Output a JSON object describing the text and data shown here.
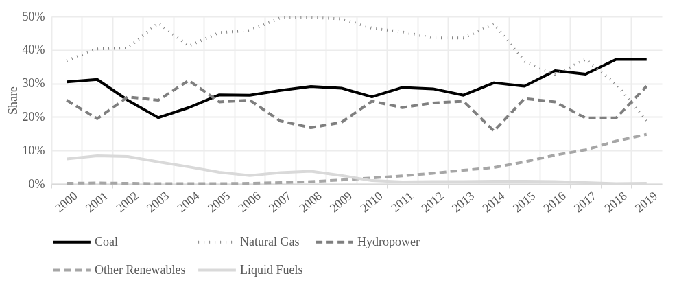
{
  "chart_data": {
    "type": "line",
    "ylabel": "Share",
    "categories": [
      "2000",
      "2001",
      "2002",
      "2003",
      "2004",
      "2005",
      "2006",
      "2007",
      "2008",
      "2009",
      "2010",
      "2011",
      "2012",
      "2013",
      "2014",
      "2015",
      "2016",
      "2017",
      "2018",
      "2019"
    ],
    "series": [
      {
        "name": "Coal",
        "color": "#000000",
        "line_style": "solid",
        "values": [
          30.5,
          31.2,
          25,
          19.8,
          22.8,
          26.6,
          26.5,
          27.9,
          29.1,
          28.6,
          26.0,
          28.8,
          28.4,
          26.5,
          30.2,
          29.2,
          33.8,
          32.8,
          37.2,
          37.2
        ]
      },
      {
        "name": "Natural Gas",
        "color": "#808080",
        "line_style": "dotted",
        "values": [
          36.8,
          40.3,
          40.6,
          48,
          41.2,
          45.2,
          45.8,
          49.6,
          49.7,
          49.3,
          46.5,
          45.4,
          43.6,
          43.6,
          47.8,
          36.6,
          32.6,
          37.2,
          29.8,
          18.8
        ]
      },
      {
        "name": "Hydropower",
        "color": "#7f7f7f",
        "line_style": "dashed",
        "values": [
          25,
          19.5,
          26,
          25,
          30.9,
          24.5,
          25,
          18.8,
          16.8,
          18.4,
          24.7,
          22.8,
          24.2,
          24.7,
          15.8,
          25.5,
          24.5,
          19.7,
          19.7,
          29.2
        ]
      },
      {
        "name": "Other Renewables",
        "color": "#a6a6a6",
        "line_style": "dashed",
        "values": [
          0.2,
          0.3,
          0.2,
          0.1,
          0.1,
          0.1,
          0.2,
          0.4,
          0.7,
          1.2,
          1.8,
          2.4,
          3.2,
          4.1,
          4.9,
          6.6,
          8.6,
          10.2,
          12.8,
          14.8
        ]
      },
      {
        "name": "Liquid Fuels",
        "color": "#d9d9d9",
        "line_style": "solid",
        "values": [
          7.5,
          8.4,
          8.2,
          6.6,
          5.1,
          3.5,
          2.5,
          3.4,
          3.8,
          2.5,
          1.0,
          0.6,
          0.7,
          0.7,
          0.8,
          0.8,
          0.7,
          0.4,
          0.1,
          0.2
        ]
      }
    ],
    "ylim": [
      0,
      50
    ],
    "yticks": [
      {
        "value": 0,
        "label": "0%"
      },
      {
        "value": 10,
        "label": "10%"
      },
      {
        "value": 20,
        "label": "20%"
      },
      {
        "value": 30,
        "label": "30%"
      },
      {
        "value": 40,
        "label": "40%"
      },
      {
        "value": 50,
        "label": "50%"
      }
    ],
    "grid": true,
    "legend": "bottom"
  }
}
